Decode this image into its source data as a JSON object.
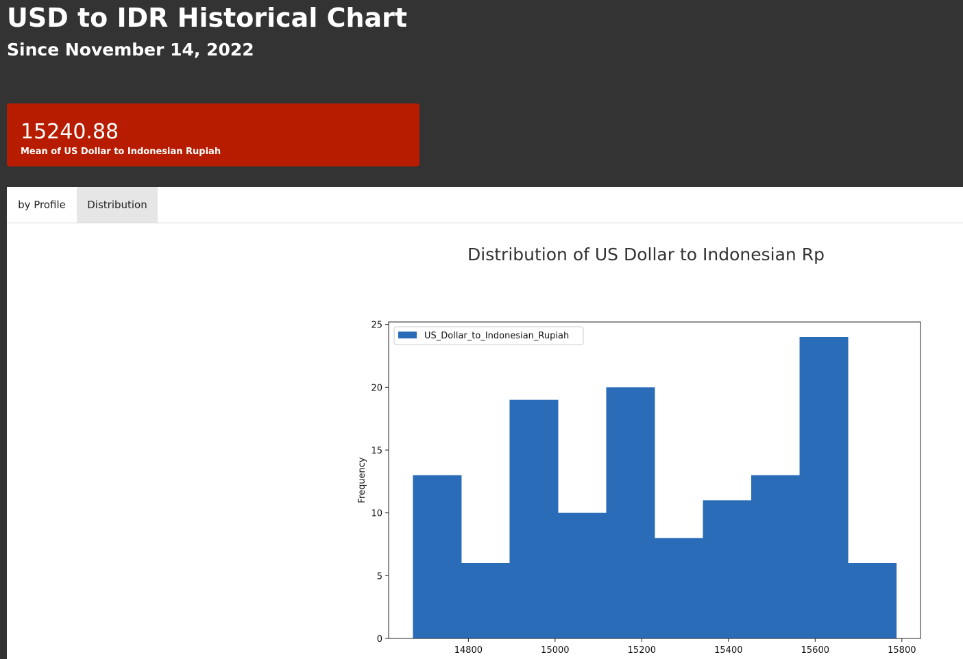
{
  "header": {
    "title": "USD to IDR Historical Chart",
    "subtitle": "Since November 14, 2022"
  },
  "stat_card": {
    "value": "15240.88",
    "label": "Mean of US Dollar to Indonesian Rupiah",
    "color": "#b81c00"
  },
  "tabs": [
    {
      "label": "by Profile",
      "active": false
    },
    {
      "label": "Distribution",
      "active": true
    }
  ],
  "chart_title": "Distribution of US Dollar to Indonesian Rp",
  "chart_data": {
    "type": "bar",
    "subtype": "histogram",
    "title": "Distribution of US Dollar to Indonesian Rp",
    "xlabel": "",
    "ylabel": "Frequency",
    "bin_edges": [
      14672,
      14783.5,
      14895,
      15006.5,
      15118,
      15229.5,
      15341,
      15452.5,
      15564,
      15675.5,
      15787
    ],
    "series": [
      {
        "name": "US_Dollar_to_Indonesian_Rupiah",
        "values": [
          13,
          6,
          19,
          10,
          20,
          8,
          11,
          13,
          24,
          6
        ],
        "color": "#2a6cb8"
      }
    ],
    "xlim": [
      14616,
      15843
    ],
    "ylim": [
      0,
      25.2
    ],
    "xticks": [
      14800,
      15000,
      15200,
      15400,
      15600,
      15800
    ],
    "yticks": [
      0,
      5,
      10,
      15,
      20,
      25
    ],
    "legend": "top-left",
    "grid": false
  }
}
